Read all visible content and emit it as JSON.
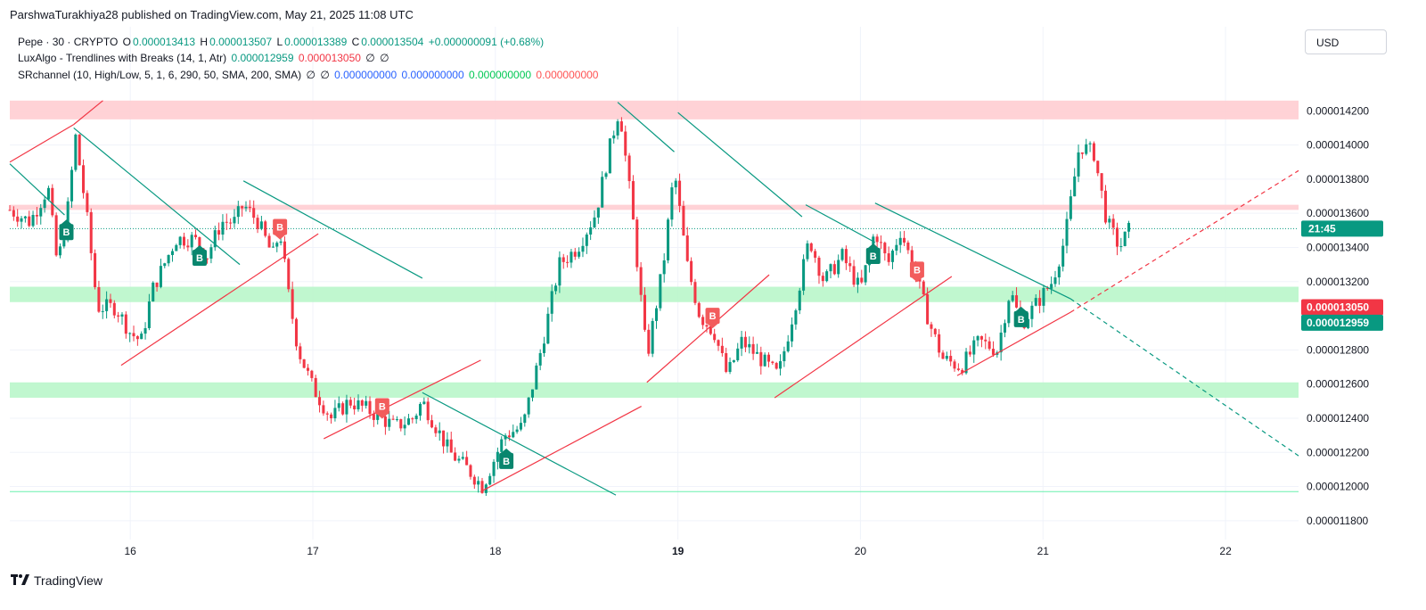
{
  "publisher": "ParshwaTurakhiya28 published on TradingView.com, May 21, 2025 11:08 UTC",
  "legend": {
    "line1": {
      "symbol": "Pepe · 30 · CRYPTO",
      "o_label": "O",
      "o_value": "0.000013413",
      "h_label": "H",
      "h_value": "0.000013507",
      "l_label": "L",
      "l_value": "0.000013389",
      "c_label": "C",
      "c_value": "0.000013504",
      "change": "+0.000000091 (+0.68%)"
    },
    "line2": {
      "name": "LuxAlgo - Trendlines with Breaks (14, 1, Atr)",
      "v1": "0.000012959",
      "v2": "0.000013050",
      "null1": "∅",
      "null2": "∅"
    },
    "line3": {
      "name": "SRchannel (10, High/Low, 5, 1, 6, 290, 50, SMA, 200, SMA)",
      "null1": "∅",
      "null2": "∅",
      "v1": "0.000000000",
      "v2": "0.000000000",
      "v3": "0.000000000",
      "v4": "0.000000000"
    }
  },
  "currency_button": "USD",
  "footer_brand": "TradingView",
  "colors": {
    "up": "#089981",
    "down": "#f23645",
    "trend_down": "#089981",
    "trend_up": "#f23645",
    "resistance_zone": "#ffcdd2",
    "support_zone": "#b9f6ca",
    "grid": "#f0f3fa"
  },
  "chart_data": {
    "type": "candlestick",
    "y_axis": {
      "ylim": [
        1.17e-05,
        1.44e-05
      ],
      "ticks": [
        "0.000014200",
        "0.000014000",
        "0.000013800",
        "0.000013600",
        "0.000013400",
        "0.000013200",
        "0.000012800",
        "0.000012600",
        "0.000012400",
        "0.000012200",
        "0.000012000",
        "0.000011800"
      ],
      "tick_values": [
        1.42e-05,
        1.4e-05,
        1.38e-05,
        1.36e-05,
        1.34e-05,
        1.32e-05,
        1.28e-05,
        1.26e-05,
        1.24e-05,
        1.22e-05,
        1.2e-05,
        1.18e-05
      ]
    },
    "x_axis": {
      "xlim": [
        15.34,
        22.4
      ],
      "ticks": [
        {
          "label": "16",
          "value": 16,
          "bold": false
        },
        {
          "label": "17",
          "value": 17,
          "bold": false
        },
        {
          "label": "18",
          "value": 18,
          "bold": false
        },
        {
          "label": "19",
          "value": 19,
          "bold": true
        },
        {
          "label": "20",
          "value": 20,
          "bold": false
        },
        {
          "label": "21",
          "value": 21,
          "bold": false
        },
        {
          "label": "22",
          "value": 22,
          "bold": false
        }
      ]
    },
    "price_labels": [
      {
        "text": "21:45",
        "value": 1.351e-05,
        "color": "#089981"
      },
      {
        "text": "0.000013050",
        "value": 1.305e-05,
        "color": "#f23645"
      },
      {
        "text": "0.000012959",
        "value": 1.2959e-05,
        "color": "#089981"
      }
    ],
    "zones": [
      {
        "kind": "resistance",
        "y_low": 1.415e-05,
        "y_high": 1.426e-05
      },
      {
        "kind": "resistance",
        "y_low": 1.362e-05,
        "y_high": 1.365e-05
      },
      {
        "kind": "support",
        "y_low": 1.308e-05,
        "y_high": 1.317e-05
      },
      {
        "kind": "support",
        "y_low": 1.252e-05,
        "y_high": 1.261e-05
      },
      {
        "kind": "support_line",
        "y_low": 1.197e-05,
        "y_high": 1.197e-05
      }
    ],
    "current_price_line": 1.351e-05,
    "anchors": [
      [
        15.34,
        13.62
      ],
      [
        15.45,
        13.55
      ],
      [
        15.55,
        13.75
      ],
      [
        15.6,
        13.3
      ],
      [
        15.65,
        13.55
      ],
      [
        15.7,
        14.05
      ],
      [
        15.76,
        13.6
      ],
      [
        15.82,
        13.05
      ],
      [
        15.92,
        13.05
      ],
      [
        16.0,
        12.9
      ],
      [
        16.06,
        12.85
      ],
      [
        16.12,
        13.15
      ],
      [
        16.25,
        13.45
      ],
      [
        16.35,
        13.45
      ],
      [
        16.42,
        13.35
      ],
      [
        16.5,
        13.55
      ],
      [
        16.57,
        13.55
      ],
      [
        16.62,
        13.65
      ],
      [
        16.7,
        13.55
      ],
      [
        16.78,
        13.35
      ],
      [
        16.82,
        13.5
      ],
      [
        16.87,
        13.1
      ],
      [
        16.92,
        12.8
      ],
      [
        17.0,
        12.58
      ],
      [
        17.1,
        12.4
      ],
      [
        17.2,
        12.5
      ],
      [
        17.3,
        12.45
      ],
      [
        17.45,
        12.35
      ],
      [
        17.55,
        12.4
      ],
      [
        17.6,
        12.5
      ],
      [
        17.75,
        12.2
      ],
      [
        17.85,
        12.1
      ],
      [
        17.93,
        12.0
      ],
      [
        18.05,
        12.3
      ],
      [
        18.15,
        12.35
      ],
      [
        18.25,
        12.8
      ],
      [
        18.35,
        13.3
      ],
      [
        18.45,
        13.4
      ],
      [
        18.55,
        13.6
      ],
      [
        18.63,
        14.0
      ],
      [
        18.68,
        14.22
      ],
      [
        18.75,
        13.6
      ],
      [
        18.83,
        12.75
      ],
      [
        18.92,
        13.3
      ],
      [
        18.98,
        13.85
      ],
      [
        19.05,
        13.3
      ],
      [
        19.12,
        13.0
      ],
      [
        19.2,
        12.9
      ],
      [
        19.27,
        12.65
      ],
      [
        19.35,
        12.85
      ],
      [
        19.45,
        12.75
      ],
      [
        19.55,
        12.65
      ],
      [
        19.65,
        13.1
      ],
      [
        19.72,
        13.45
      ],
      [
        19.8,
        13.2
      ],
      [
        19.9,
        13.35
      ],
      [
        20.0,
        13.15
      ],
      [
        20.08,
        13.5
      ],
      [
        20.15,
        13.3
      ],
      [
        20.22,
        13.5
      ],
      [
        20.3,
        13.25
      ],
      [
        20.38,
        12.95
      ],
      [
        20.45,
        12.75
      ],
      [
        20.55,
        12.7
      ],
      [
        20.65,
        12.85
      ],
      [
        20.75,
        12.8
      ],
      [
        20.82,
        13.15
      ],
      [
        20.88,
        12.95
      ],
      [
        20.95,
        13.05
      ],
      [
        21.05,
        13.2
      ],
      [
        21.12,
        13.45
      ],
      [
        21.2,
        14.0
      ],
      [
        21.28,
        13.95
      ],
      [
        21.35,
        13.55
      ],
      [
        21.42,
        13.4
      ],
      [
        21.47,
        13.5
      ]
    ],
    "last_bar_index": 289,
    "bars_total": 291,
    "trendlines": [
      {
        "color": "down",
        "x1": 15.34,
        "y1": 13.89,
        "x2": 15.64,
        "y2": 13.59,
        "dashed": false
      },
      {
        "color": "down",
        "x1": 15.69,
        "y1": 14.1,
        "x2": 16.6,
        "y2": 13.3,
        "dashed": false
      },
      {
        "color": "down",
        "x1": 16.62,
        "y1": 13.79,
        "x2": 17.6,
        "y2": 13.22,
        "dashed": false
      },
      {
        "color": "down",
        "x1": 17.6,
        "y1": 12.55,
        "x2": 18.66,
        "y2": 11.95,
        "dashed": false
      },
      {
        "color": "down",
        "x1": 18.67,
        "y1": 14.25,
        "x2": 18.98,
        "y2": 13.96,
        "dashed": false
      },
      {
        "color": "down",
        "x1": 19.0,
        "y1": 14.19,
        "x2": 19.68,
        "y2": 13.58,
        "dashed": false
      },
      {
        "color": "down",
        "x1": 19.7,
        "y1": 13.65,
        "x2": 20.08,
        "y2": 13.43,
        "dashed": false
      },
      {
        "color": "down",
        "x1": 20.08,
        "y1": 13.66,
        "x2": 21.15,
        "y2": 13.1,
        "dashed": false
      },
      {
        "color": "down",
        "x1": 21.15,
        "y1": 13.1,
        "x2": 22.4,
        "y2": 12.18,
        "dashed": true
      },
      {
        "color": "up",
        "x1": 15.34,
        "y1": 13.9,
        "x2": 15.69,
        "y2": 14.12,
        "dashed": false
      },
      {
        "color": "up",
        "x1": 15.69,
        "y1": 14.12,
        "x2": 15.85,
        "y2": 14.26,
        "dashed": false
      },
      {
        "color": "up",
        "x1": 15.95,
        "y1": 12.71,
        "x2": 17.03,
        "y2": 13.48,
        "dashed": false
      },
      {
        "color": "up",
        "x1": 17.06,
        "y1": 12.28,
        "x2": 17.92,
        "y2": 12.74,
        "dashed": false
      },
      {
        "color": "up",
        "x1": 17.92,
        "y1": 11.97,
        "x2": 18.8,
        "y2": 12.47,
        "dashed": false
      },
      {
        "color": "up",
        "x1": 18.83,
        "y1": 12.61,
        "x2": 19.5,
        "y2": 13.24,
        "dashed": false
      },
      {
        "color": "up",
        "x1": 19.53,
        "y1": 12.52,
        "x2": 20.5,
        "y2": 13.23,
        "dashed": false
      },
      {
        "color": "up",
        "x1": 20.53,
        "y1": 12.65,
        "x2": 21.15,
        "y2": 13.02,
        "dashed": false
      },
      {
        "color": "up",
        "x1": 21.15,
        "y1": 13.02,
        "x2": 22.4,
        "y2": 13.85,
        "dashed": true
      }
    ],
    "break_markers": [
      {
        "label": "B",
        "kind": "buy",
        "x": 15.65,
        "y": 13.49
      },
      {
        "label": "B",
        "kind": "buy",
        "x": 16.38,
        "y": 13.34
      },
      {
        "label": "B",
        "kind": "sell",
        "x": 16.82,
        "y": 13.52
      },
      {
        "label": "B",
        "kind": "sell",
        "x": 17.38,
        "y": 12.47
      },
      {
        "label": "B",
        "kind": "buy",
        "x": 18.06,
        "y": 12.15
      },
      {
        "label": "B",
        "kind": "sell",
        "x": 19.19,
        "y": 13.0
      },
      {
        "label": "B",
        "kind": "buy",
        "x": 20.07,
        "y": 13.35
      },
      {
        "label": "B",
        "kind": "sell",
        "x": 20.31,
        "y": 13.27
      },
      {
        "label": "B",
        "kind": "buy",
        "x": 20.88,
        "y": 12.98
      }
    ]
  }
}
